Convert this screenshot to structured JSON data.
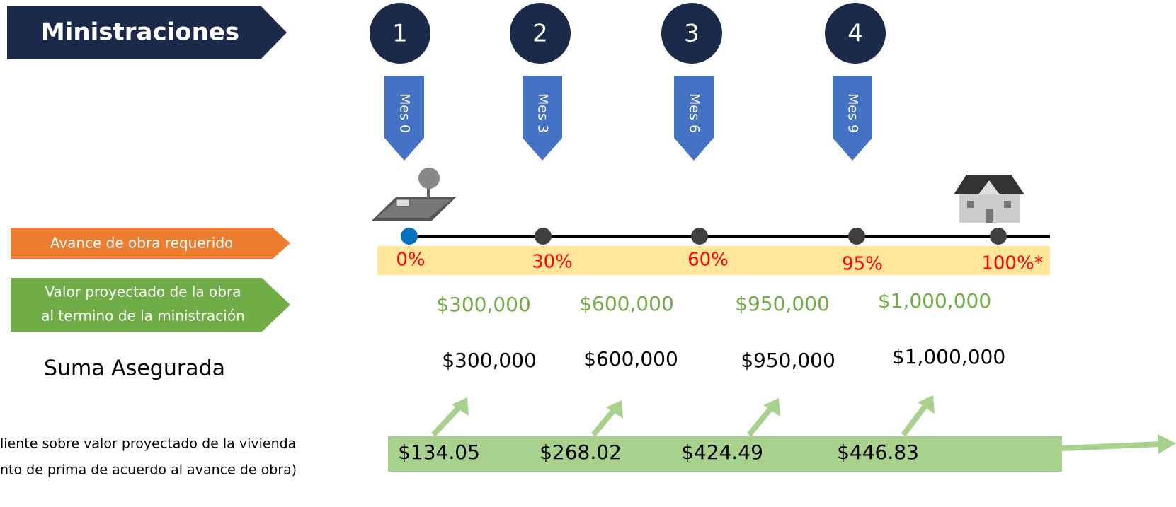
{
  "title": "Ministraciones",
  "labels": {
    "avance": "Avance de obra requerido",
    "valor": [
      "Valor proyectado de la obra",
      "al termino de la ministración"
    ],
    "suma": "Suma Asegurada",
    "nota": [
      "liente sobre valor proyectado de la vivienda",
      "nto de prima de acuerdo al avance de obra)"
    ]
  },
  "milestones": [
    {
      "number": "1",
      "month": "Mes 0",
      "percent": "0%",
      "projected": "$300,000",
      "insured": "$300,000",
      "premium": "$134.05"
    },
    {
      "number": "2",
      "month": "Mes 3",
      "percent": "30%",
      "projected": "$600,000",
      "insured": "$600,000",
      "premium": "$268.02"
    },
    {
      "number": "3",
      "month": "Mes 6",
      "percent": "60%",
      "projected": "$950,000",
      "insured": "$950,000",
      "premium": "$424.49"
    },
    {
      "number": "4",
      "month": "Mes 9",
      "percent": "95%",
      "projected": "$1,000,000",
      "insured": "$1,000,000",
      "premium": "$446.83"
    }
  ],
  "final_percent": "100%*"
}
